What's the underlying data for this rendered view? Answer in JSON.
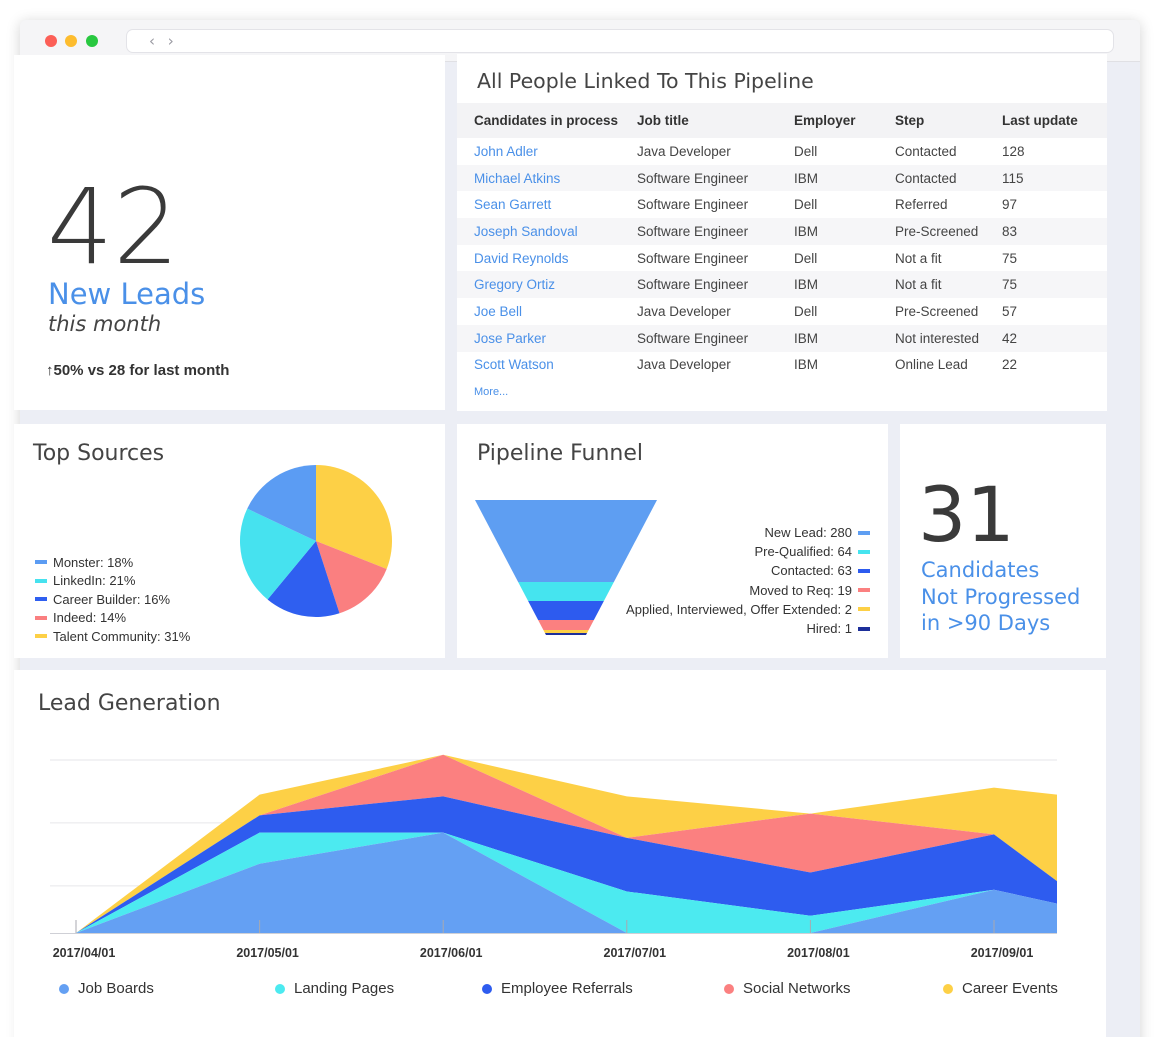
{
  "browser": {
    "nav_arrows": "‹ ›"
  },
  "new_leads": {
    "number": "42",
    "title": "New Leads",
    "subtitle": "this month",
    "delta": "↑50% vs 28 for last month"
  },
  "pipeline_table": {
    "title": "All People Linked To This Pipeline",
    "columns": [
      "Candidates in process",
      "Job title",
      "Employer",
      "Step",
      "Last update"
    ],
    "rows": [
      [
        "John Adler",
        "Java Developer",
        "Dell",
        "Contacted",
        "128"
      ],
      [
        "Michael Atkins",
        "Software Engineer",
        "IBM",
        "Contacted",
        "115"
      ],
      [
        "Sean Garrett",
        "Software Engineer",
        "Dell",
        "Referred",
        "97"
      ],
      [
        "Joseph Sandoval",
        "Software Engineer",
        "IBM",
        "Pre-Screened",
        "83"
      ],
      [
        "David Reynolds",
        "Software Engineer",
        "Dell",
        "Not a fit",
        "75"
      ],
      [
        "Gregory Ortiz",
        "Software Engineer",
        "IBM",
        "Not a fit",
        "75"
      ],
      [
        "Joe Bell",
        "Java Developer",
        "Dell",
        "Pre-Screened",
        "57"
      ],
      [
        "Jose Parker",
        "Software Engineer",
        "IBM",
        "Not interested",
        "42"
      ],
      [
        "Scott Watson",
        "Java Developer",
        "IBM",
        "Online Lead",
        "22"
      ]
    ],
    "more_link": "More..."
  },
  "top_sources": {
    "title": "Top Sources",
    "legend": [
      {
        "label": "Monster: 18%",
        "color": "#5b9cf3"
      },
      {
        "label": "LinkedIn: 21%",
        "color": "#46e2ef"
      },
      {
        "label": "Career Builder: 16%",
        "color": "#2f5ff0"
      },
      {
        "label": "Indeed: 14%",
        "color": "#fa7f80"
      },
      {
        "label": "Talent Community: 31%",
        "color": "#fdd046"
      }
    ]
  },
  "pipeline_funnel": {
    "title": "Pipeline Funnel",
    "stages": [
      {
        "label": "New Lead: 280",
        "color": "#5e9ef2"
      },
      {
        "label": "Pre-Qualified: 64",
        "color": "#45e4ef"
      },
      {
        "label": "Contacted: 63",
        "color": "#2d5bef"
      },
      {
        "label": "Moved to Req: 19",
        "color": "#fb8080"
      },
      {
        "label": "Applied, Interviewed, Offer Extended: 2",
        "color": "#fdd046"
      },
      {
        "label": "Hired: 1",
        "color": "#1d2f9a"
      }
    ]
  },
  "not_progressed": {
    "number": "31",
    "lines": [
      "Candidates",
      "Not Progressed",
      "in >90 Days"
    ]
  },
  "chart_data": [
    {
      "type": "pie",
      "title": "Top Sources",
      "categories": [
        "Monster",
        "LinkedIn",
        "Career Builder",
        "Indeed",
        "Talent Community"
      ],
      "values": [
        18,
        21,
        16,
        14,
        31
      ],
      "colors": [
        "#5b9cf3",
        "#46e2ef",
        "#2f5ff0",
        "#fa7f80",
        "#fdd046"
      ]
    },
    {
      "type": "area",
      "title": "Lead Generation",
      "stacked": true,
      "x": [
        "2017/04/01",
        "2017/05/01",
        "2017/06/01",
        "2017/07/01",
        "2017/08/01",
        "2017/09/01",
        "2017/09/10"
      ],
      "x_tick_labels": [
        "2017/04/01",
        "2017/05/01",
        "2017/06/01",
        "2017/07/01",
        "2017/08/01",
        "2017/09/01"
      ],
      "ylim": [
        0,
        100
      ],
      "grid": true,
      "legend_position": "bottom",
      "series": [
        {
          "name": "Job Boards",
          "color": "#64a0f3",
          "values": [
            0,
            40,
            58,
            0,
            0,
            25,
            17
          ]
        },
        {
          "name": "Landing Pages",
          "color": "#4ceaf0",
          "values": [
            0,
            18,
            0,
            24,
            10,
            0,
            0
          ]
        },
        {
          "name": "Employee Referrals",
          "color": "#2e5cef",
          "values": [
            0,
            10,
            21,
            31,
            25,
            32,
            13
          ]
        },
        {
          "name": "Social Networks",
          "color": "#fb8080",
          "values": [
            0,
            0,
            24,
            0,
            34,
            0,
            0
          ]
        },
        {
          "name": "Career Events",
          "color": "#fdd046",
          "values": [
            0,
            12,
            0,
            24,
            0,
            27,
            50
          ]
        }
      ]
    }
  ]
}
